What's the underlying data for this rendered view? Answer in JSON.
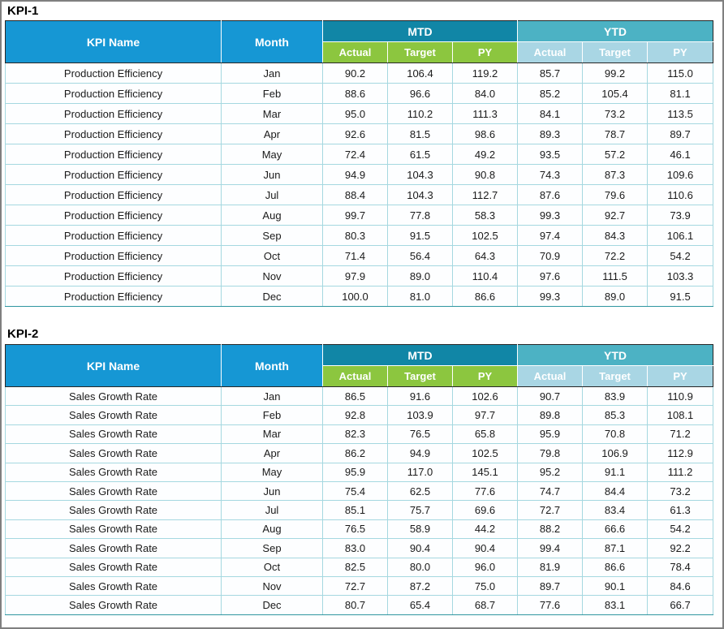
{
  "header": {
    "kpi_name": "KPI Name",
    "month": "Month",
    "mtd": "MTD",
    "ytd": "YTD",
    "actual": "Actual",
    "target": "Target",
    "py": "PY"
  },
  "colors": {
    "header_blue": "#1697d4",
    "mtd_band": "#1186a6",
    "ytd_band": "#4cb2c4",
    "mtd_sub": "#8cc63f",
    "ytd_sub": "#a9d6e4",
    "cell_border": "#a5d8e0",
    "table_bottom_border": "#2f96a0",
    "header_outline": "#262626",
    "frame_border": "#7f7f7f",
    "data_text": "#1a1a1a"
  },
  "chart_data": [
    {
      "type": "table",
      "title": "KPI-1",
      "columns": [
        "KPI Name",
        "Month",
        "MTD Actual",
        "MTD Target",
        "MTD PY",
        "YTD Actual",
        "YTD Target",
        "YTD PY"
      ],
      "rows": [
        [
          "Production Efficiency",
          "Jan",
          "90.2",
          "106.4",
          "119.2",
          "85.7",
          "99.2",
          "115.0"
        ],
        [
          "Production Efficiency",
          "Feb",
          "88.6",
          "96.6",
          "84.0",
          "85.2",
          "105.4",
          "81.1"
        ],
        [
          "Production Efficiency",
          "Mar",
          "95.0",
          "110.2",
          "111.3",
          "84.1",
          "73.2",
          "113.5"
        ],
        [
          "Production Efficiency",
          "Apr",
          "92.6",
          "81.5",
          "98.6",
          "89.3",
          "78.7",
          "89.7"
        ],
        [
          "Production Efficiency",
          "May",
          "72.4",
          "61.5",
          "49.2",
          "93.5",
          "57.2",
          "46.1"
        ],
        [
          "Production Efficiency",
          "Jun",
          "94.9",
          "104.3",
          "90.8",
          "74.3",
          "87.3",
          "109.6"
        ],
        [
          "Production Efficiency",
          "Jul",
          "88.4",
          "104.3",
          "112.7",
          "87.6",
          "79.6",
          "110.6"
        ],
        [
          "Production Efficiency",
          "Aug",
          "99.7",
          "77.8",
          "58.3",
          "99.3",
          "92.7",
          "73.9"
        ],
        [
          "Production Efficiency",
          "Sep",
          "80.3",
          "91.5",
          "102.5",
          "97.4",
          "84.3",
          "106.1"
        ],
        [
          "Production Efficiency",
          "Oct",
          "71.4",
          "56.4",
          "64.3",
          "70.9",
          "72.2",
          "54.2"
        ],
        [
          "Production Efficiency",
          "Nov",
          "97.9",
          "89.0",
          "110.4",
          "97.6",
          "111.5",
          "103.3"
        ],
        [
          "Production Efficiency",
          "Dec",
          "100.0",
          "81.0",
          "86.6",
          "99.3",
          "89.0",
          "91.5"
        ]
      ]
    },
    {
      "type": "table",
      "title": "KPI-2",
      "columns": [
        "KPI Name",
        "Month",
        "MTD Actual",
        "MTD Target",
        "MTD PY",
        "YTD Actual",
        "YTD Target",
        "YTD PY"
      ],
      "rows": [
        [
          "Sales Growth Rate",
          "Jan",
          "86.5",
          "91.6",
          "102.6",
          "90.7",
          "83.9",
          "110.9"
        ],
        [
          "Sales Growth Rate",
          "Feb",
          "92.8",
          "103.9",
          "97.7",
          "89.8",
          "85.3",
          "108.1"
        ],
        [
          "Sales Growth Rate",
          "Mar",
          "82.3",
          "76.5",
          "65.8",
          "95.9",
          "70.8",
          "71.2"
        ],
        [
          "Sales Growth Rate",
          "Apr",
          "86.2",
          "94.9",
          "102.5",
          "79.8",
          "106.9",
          "112.9"
        ],
        [
          "Sales Growth Rate",
          "May",
          "95.9",
          "117.0",
          "145.1",
          "95.2",
          "91.1",
          "111.2"
        ],
        [
          "Sales Growth Rate",
          "Jun",
          "75.4",
          "62.5",
          "77.6",
          "74.7",
          "84.4",
          "73.2"
        ],
        [
          "Sales Growth Rate",
          "Jul",
          "85.1",
          "75.7",
          "69.6",
          "72.7",
          "83.4",
          "61.3"
        ],
        [
          "Sales Growth Rate",
          "Aug",
          "76.5",
          "58.9",
          "44.2",
          "88.2",
          "66.6",
          "54.2"
        ],
        [
          "Sales Growth Rate",
          "Sep",
          "83.0",
          "90.4",
          "90.4",
          "99.4",
          "87.1",
          "92.2"
        ],
        [
          "Sales Growth Rate",
          "Oct",
          "82.5",
          "80.0",
          "96.0",
          "81.9",
          "86.6",
          "78.4"
        ],
        [
          "Sales Growth Rate",
          "Nov",
          "72.7",
          "87.2",
          "75.0",
          "89.7",
          "90.1",
          "84.6"
        ],
        [
          "Sales Growth Rate",
          "Dec",
          "80.7",
          "65.4",
          "68.7",
          "77.6",
          "83.1",
          "66.7"
        ]
      ]
    }
  ]
}
